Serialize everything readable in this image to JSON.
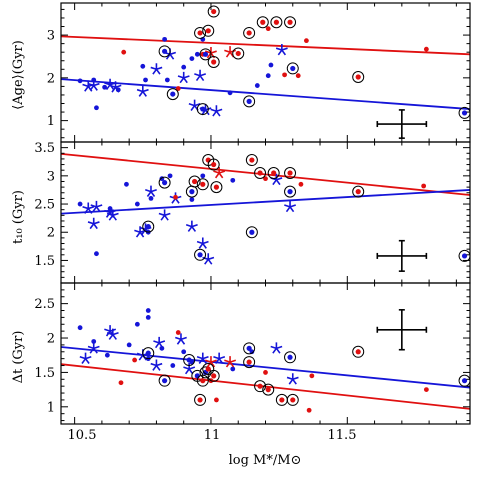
{
  "chart_data": [
    {
      "type": "scatter",
      "title": "",
      "xlabel": "",
      "ylabel": "⟨Age⟩(Gyr)",
      "xlim": [
        10.45,
        11.95
      ],
      "ylim": [
        0.5,
        3.75
      ],
      "yticks": [
        1,
        2,
        3
      ],
      "series": [
        {
          "color": "#1515d8",
          "marker": "dot",
          "points": [
            [
              10.52,
              1.93
            ],
            [
              10.57,
              1.95
            ],
            [
              10.58,
              1.3
            ],
            [
              10.61,
              1.78
            ],
            [
              10.66,
              1.72
            ],
            [
              10.75,
              2.27
            ],
            [
              10.76,
              1.95
            ],
            [
              10.83,
              2.9
            ],
            [
              10.84,
              1.95
            ],
            [
              10.9,
              2.25
            ],
            [
              10.93,
              2.45
            ],
            [
              10.95,
              2.55
            ],
            [
              10.97,
              2.9
            ],
            [
              11.07,
              1.65
            ],
            [
              11.17,
              1.82
            ],
            [
              11.21,
              2.05
            ],
            [
              11.22,
              2.3
            ]
          ]
        },
        {
          "color": "#1515d8",
          "marker": "star",
          "points": [
            [
              10.55,
              1.8
            ],
            [
              10.57,
              1.82
            ],
            [
              10.63,
              1.84
            ],
            [
              10.65,
              1.78
            ],
            [
              10.75,
              1.68
            ],
            [
              10.8,
              2.2
            ],
            [
              10.85,
              2.55
            ],
            [
              10.9,
              2.0
            ],
            [
              10.94,
              1.35
            ],
            [
              10.96,
              2.05
            ],
            [
              10.98,
              1.25
            ],
            [
              11.02,
              1.22
            ],
            [
              11.26,
              2.65
            ]
          ]
        },
        {
          "color": "#e01010",
          "marker": "dot",
          "points": [
            [
              10.68,
              2.6
            ],
            [
              10.88,
              1.75
            ],
            [
              10.97,
              2.55
            ],
            [
              11.21,
              3.15
            ],
            [
              11.27,
              2.07
            ],
            [
              11.32,
              2.05
            ],
            [
              11.35,
              2.87
            ],
            [
              11.79,
              2.67
            ]
          ]
        },
        {
          "color": "#e01010",
          "marker": "star",
          "points": [
            [
              11.0,
              2.58
            ],
            [
              11.07,
              2.6
            ]
          ]
        },
        {
          "color": "#1515d8",
          "marker": "circled-dot",
          "points": [
            [
              10.83,
              2.62
            ],
            [
              10.86,
              1.62
            ],
            [
              10.97,
              1.27
            ],
            [
              10.98,
              2.55
            ],
            [
              11.14,
              1.45
            ],
            [
              11.3,
              2.22
            ],
            [
              11.93,
              1.18
            ]
          ]
        },
        {
          "color": "#e01010",
          "marker": "circled-dot",
          "points": [
            [
              10.96,
              3.05
            ],
            [
              10.99,
              3.1
            ],
            [
              11.01,
              3.55
            ],
            [
              11.01,
              2.37
            ],
            [
              11.1,
              2.57
            ],
            [
              11.14,
              3.05
            ],
            [
              11.19,
              3.3
            ],
            [
              11.24,
              3.3
            ],
            [
              11.29,
              3.3
            ],
            [
              11.54,
              2.02
            ]
          ]
        }
      ],
      "fit_lines": [
        {
          "color": "#e01010",
          "x": [
            10.45,
            11.95
          ],
          "y": [
            2.97,
            2.55
          ]
        },
        {
          "color": "#1515d8",
          "x": [
            10.45,
            11.95
          ],
          "y": [
            1.97,
            1.27
          ]
        }
      ],
      "error_bar": {
        "x": 11.7,
        "y": 0.92,
        "xerr": 0.09,
        "yerr": 0.33
      }
    },
    {
      "type": "scatter",
      "title": "",
      "xlabel": "",
      "ylabel": "t10 (Gyr)",
      "ylim": [
        1.1,
        3.6
      ],
      "yticks": [
        1.5,
        2,
        2.5,
        3,
        3.5
      ],
      "series": [
        {
          "color": "#1515d8",
          "marker": "dot",
          "points": [
            [
              10.52,
              2.5
            ],
            [
              10.58,
              1.62
            ],
            [
              10.63,
              2.42
            ],
            [
              10.69,
              2.85
            ],
            [
              10.73,
              2.5
            ],
            [
              10.77,
              2.0
            ],
            [
              10.78,
              2.6
            ],
            [
              10.82,
              2.95
            ],
            [
              10.85,
              3.0
            ],
            [
              10.93,
              2.58
            ],
            [
              10.97,
              3.0
            ],
            [
              11.08,
              2.92
            ]
          ]
        },
        {
          "color": "#1515d8",
          "marker": "star",
          "points": [
            [
              10.55,
              2.42
            ],
            [
              10.57,
              2.15
            ],
            [
              10.58,
              2.45
            ],
            [
              10.63,
              2.35
            ],
            [
              10.64,
              2.3
            ],
            [
              10.74,
              2.0
            ],
            [
              10.76,
              2.05
            ],
            [
              10.78,
              2.72
            ],
            [
              10.83,
              2.3
            ],
            [
              10.87,
              2.6
            ],
            [
              10.93,
              2.1
            ],
            [
              10.97,
              1.8
            ],
            [
              10.99,
              1.52
            ],
            [
              11.24,
              2.93
            ],
            [
              11.29,
              2.45
            ]
          ]
        },
        {
          "color": "#e01010",
          "marker": "dot",
          "points": [
            [
              10.87,
              2.62
            ],
            [
              11.2,
              2.95
            ],
            [
              11.33,
              2.85
            ],
            [
              11.78,
              2.82
            ]
          ]
        },
        {
          "color": "#e01010",
          "marker": "star",
          "points": [
            [
              11.03,
              3.05
            ]
          ]
        },
        {
          "color": "#1515d8",
          "marker": "circled-dot",
          "points": [
            [
              10.77,
              2.1
            ],
            [
              10.83,
              2.88
            ],
            [
              10.93,
              2.72
            ],
            [
              10.96,
              1.6
            ],
            [
              11.15,
              2.0
            ],
            [
              11.29,
              2.72
            ],
            [
              11.93,
              1.58
            ]
          ]
        },
        {
          "color": "#e01010",
          "marker": "circled-dot",
          "points": [
            [
              10.94,
              2.9
            ],
            [
              10.97,
              2.85
            ],
            [
              10.99,
              3.28
            ],
            [
              11.01,
              3.2
            ],
            [
              11.02,
              2.8
            ],
            [
              11.15,
              3.28
            ],
            [
              11.18,
              3.05
            ],
            [
              11.23,
              3.05
            ],
            [
              11.29,
              3.05
            ],
            [
              11.54,
              2.72
            ]
          ]
        }
      ],
      "fit_lines": [
        {
          "color": "#e01010",
          "x": [
            10.45,
            11.95
          ],
          "y": [
            3.39,
            2.66
          ]
        },
        {
          "color": "#1515d8",
          "x": [
            10.45,
            11.95
          ],
          "y": [
            2.33,
            2.75
          ]
        }
      ],
      "error_bar": {
        "x": 11.7,
        "y": 1.58,
        "xerr": 0.09,
        "yerr": 0.27
      }
    },
    {
      "type": "scatter",
      "title": "",
      "xlabel": "log M*/M⊙",
      "ylabel": "Δt (Gyr)",
      "ylim": [
        0.75,
        2.8
      ],
      "yticks": [
        1,
        1.5,
        2,
        2.5
      ],
      "xticks": [
        10.5,
        11,
        11.5
      ],
      "series": [
        {
          "color": "#1515d8",
          "marker": "dot",
          "points": [
            [
              10.52,
              2.15
            ],
            [
              10.57,
              1.95
            ],
            [
              10.62,
              1.75
            ],
            [
              10.7,
              1.9
            ],
            [
              10.73,
              2.2
            ],
            [
              10.77,
              1.7
            ],
            [
              10.77,
              2.3
            ],
            [
              10.77,
              2.4
            ],
            [
              10.82,
              1.85
            ],
            [
              10.86,
              1.6
            ],
            [
              10.9,
              1.8
            ],
            [
              10.93,
              1.65
            ],
            [
              10.95,
              1.45
            ],
            [
              11.08,
              1.55
            ],
            [
              11.15,
              1.8
            ]
          ]
        },
        {
          "color": "#1515d8",
          "marker": "star",
          "points": [
            [
              10.54,
              1.7
            ],
            [
              10.57,
              1.85
            ],
            [
              10.63,
              2.1
            ],
            [
              10.64,
              2.05
            ],
            [
              10.75,
              1.75
            ],
            [
              10.8,
              1.6
            ],
            [
              10.81,
              1.93
            ],
            [
              10.89,
              1.98
            ],
            [
              10.92,
              1.55
            ],
            [
              10.97,
              1.7
            ],
            [
              11.03,
              1.7
            ],
            [
              11.24,
              1.85
            ],
            [
              11.3,
              1.4
            ]
          ]
        },
        {
          "color": "#e01010",
          "marker": "dot",
          "points": [
            [
              10.67,
              1.35
            ],
            [
              10.72,
              1.68
            ],
            [
              10.88,
              2.08
            ],
            [
              11.0,
              1.38
            ],
            [
              11.02,
              1.1
            ],
            [
              11.2,
              1.5
            ],
            [
              11.36,
              0.95
            ],
            [
              11.37,
              1.45
            ],
            [
              11.79,
              1.25
            ]
          ]
        },
        {
          "color": "#e01010",
          "marker": "star",
          "points": [
            [
              11.0,
              1.65
            ],
            [
              11.07,
              1.65
            ]
          ]
        },
        {
          "color": "#1515d8",
          "marker": "circled-dot",
          "points": [
            [
              10.77,
              1.78
            ],
            [
              10.83,
              1.38
            ],
            [
              10.92,
              1.68
            ],
            [
              10.95,
              1.45
            ],
            [
              10.98,
              1.5
            ],
            [
              11.14,
              1.85
            ],
            [
              11.29,
              1.72
            ],
            [
              11.93,
              1.38
            ]
          ]
        },
        {
          "color": "#e01010",
          "marker": "circled-dot",
          "points": [
            [
              10.96,
              1.1
            ],
            [
              10.97,
              1.38
            ],
            [
              10.99,
              1.55
            ],
            [
              11.01,
              1.45
            ],
            [
              11.14,
              1.65
            ],
            [
              11.18,
              1.3
            ],
            [
              11.21,
              1.25
            ],
            [
              11.26,
              1.1
            ],
            [
              11.3,
              1.1
            ],
            [
              11.54,
              1.8
            ]
          ]
        }
      ],
      "fit_lines": [
        {
          "color": "#e01010",
          "x": [
            10.45,
            11.95
          ],
          "y": [
            1.62,
            0.97
          ]
        },
        {
          "color": "#1515d8",
          "x": [
            10.45,
            11.95
          ],
          "y": [
            1.87,
            1.28
          ]
        }
      ],
      "error_bar": {
        "x": 11.7,
        "y": 2.12,
        "xerr": 0.09,
        "yerr": 0.29
      }
    }
  ],
  "xtick_labels": [
    "10.5",
    "11",
    "11.5"
  ],
  "ylabels": [
    "⟨Age⟩(Gyr)",
    "t₁₀ (Gyr)",
    "Δt (Gyr)"
  ],
  "xlabel": "log M*/M⊙"
}
